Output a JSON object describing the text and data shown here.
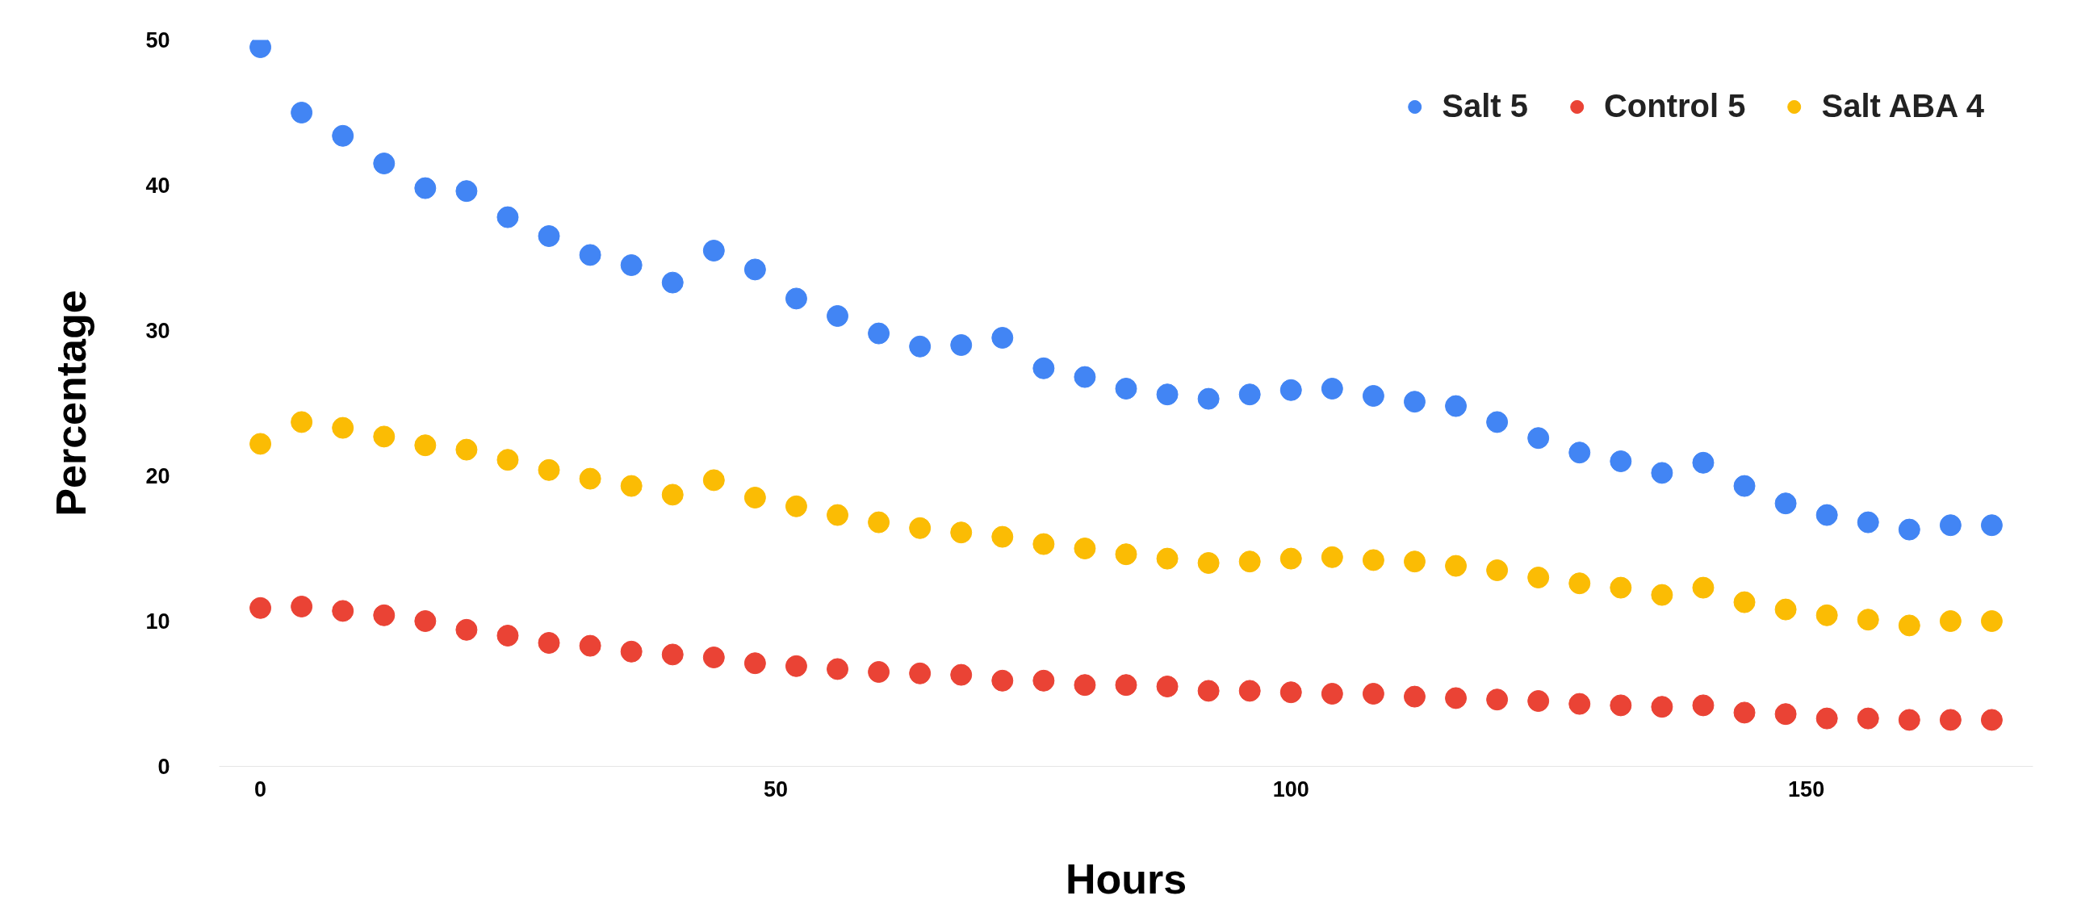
{
  "chart_data": {
    "type": "scatter",
    "xlabel": "Hours",
    "ylabel": "Percentage",
    "x": [
      0,
      4,
      8,
      12,
      16,
      20,
      24,
      28,
      32,
      36,
      40,
      44,
      48,
      52,
      56,
      60,
      64,
      68,
      72,
      76,
      80,
      84,
      88,
      92,
      96,
      100,
      104,
      108,
      112,
      116,
      120,
      124,
      128,
      132,
      136,
      140,
      144,
      148,
      152,
      156,
      160,
      164,
      168
    ],
    "series": [
      {
        "name": "Salt 5",
        "color": "#4285f4",
        "values": [
          49.5,
          45.0,
          43.4,
          41.5,
          39.8,
          39.6,
          37.8,
          36.5,
          35.2,
          34.5,
          33.3,
          35.5,
          34.2,
          32.2,
          31.0,
          29.8,
          28.9,
          29.0,
          29.5,
          27.4,
          26.8,
          26.0,
          25.6,
          25.3,
          25.6,
          25.9,
          26.0,
          25.5,
          25.1,
          24.8,
          23.7,
          22.6,
          21.6,
          21.0,
          20.2,
          20.9,
          19.3,
          18.1,
          17.3,
          16.8,
          16.3,
          16.6,
          16.6
        ]
      },
      {
        "name": "Control 5",
        "color": "#ea4335",
        "values": [
          10.9,
          11.0,
          10.7,
          10.4,
          10.0,
          9.4,
          9.0,
          8.5,
          8.3,
          7.9,
          7.7,
          7.5,
          7.1,
          6.9,
          6.7,
          6.5,
          6.4,
          6.3,
          5.9,
          5.9,
          5.6,
          5.6,
          5.5,
          5.2,
          5.2,
          5.1,
          5.0,
          5.0,
          4.8,
          4.7,
          4.6,
          4.5,
          4.3,
          4.2,
          4.1,
          4.2,
          3.7,
          3.6,
          3.3,
          3.3,
          3.2,
          3.2,
          3.2
        ]
      },
      {
        "name": "Salt ABA 4",
        "color": "#fbbc04",
        "values": [
          22.2,
          23.7,
          23.3,
          22.7,
          22.1,
          21.8,
          21.1,
          20.4,
          19.8,
          19.3,
          18.7,
          19.7,
          18.5,
          17.9,
          17.3,
          16.8,
          16.4,
          16.1,
          15.8,
          15.3,
          15.0,
          14.6,
          14.3,
          14.0,
          14.1,
          14.3,
          14.4,
          14.2,
          14.1,
          13.8,
          13.5,
          13.0,
          12.6,
          12.3,
          11.8,
          12.3,
          11.3,
          10.8,
          10.4,
          10.1,
          9.7,
          10.0,
          10.0
        ]
      }
    ],
    "xlim": [
      -4,
      172
    ],
    "xticks": [
      0,
      50,
      100,
      150
    ],
    "ylim": [
      0,
      50
    ],
    "yticks": [
      0,
      10,
      20,
      30,
      40,
      50
    ],
    "grid": false,
    "legend": "top right",
    "marker": "circle"
  }
}
